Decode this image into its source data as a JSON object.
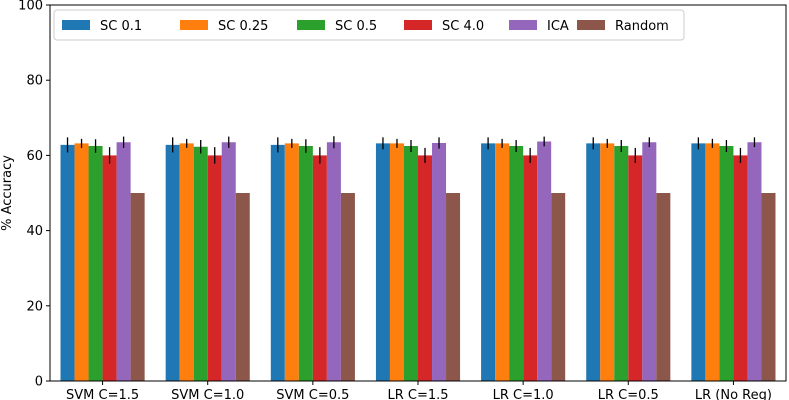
{
  "chart_data": {
    "type": "bar",
    "title": "",
    "xlabel": "",
    "ylabel": "% Accuracy",
    "ylim": [
      0,
      100
    ],
    "yticks": [
      0,
      20,
      40,
      60,
      80,
      100
    ],
    "grid": false,
    "legend_position": "top",
    "categories": [
      "SVM C=1.5",
      "SVM C=1.0",
      "SVM C=0.5",
      "LR C=1.5",
      "LR C=1.0",
      "LR C=0.5",
      "LR (No Reg)"
    ],
    "series": [
      {
        "name": "SC 0.1",
        "color": "#1f77b4",
        "values": [
          62.8,
          62.8,
          62.8,
          63.2,
          63.2,
          63.2,
          63.2
        ],
        "errors": [
          2.0,
          2.0,
          2.0,
          1.6,
          1.6,
          1.6,
          1.6
        ]
      },
      {
        "name": "SC 0.25",
        "color": "#ff7f0e",
        "values": [
          63.2,
          63.2,
          63.2,
          63.2,
          63.2,
          63.2,
          63.2
        ],
        "errors": [
          1.2,
          1.2,
          1.2,
          1.2,
          1.2,
          1.2,
          1.2
        ]
      },
      {
        "name": "SC 0.5",
        "color": "#2ca02c",
        "values": [
          62.5,
          62.3,
          62.5,
          62.5,
          62.5,
          62.5,
          62.5
        ],
        "errors": [
          1.8,
          1.8,
          1.8,
          1.6,
          1.6,
          1.6,
          1.6
        ]
      },
      {
        "name": "SC 4.0",
        "color": "#d62728",
        "values": [
          60.0,
          60.0,
          60.0,
          60.0,
          60.0,
          60.0,
          60.0
        ],
        "errors": [
          2.2,
          2.2,
          2.2,
          2.0,
          2.0,
          2.0,
          2.0
        ]
      },
      {
        "name": "ICA",
        "color": "#9467bd",
        "values": [
          63.5,
          63.5,
          63.5,
          63.3,
          63.7,
          63.5,
          63.5
        ],
        "errors": [
          1.5,
          1.5,
          1.6,
          1.5,
          1.3,
          1.3,
          1.3
        ]
      },
      {
        "name": "Random",
        "color": "#8c564b",
        "values": [
          50,
          50,
          50,
          50,
          50,
          50,
          50
        ],
        "errors": [
          0,
          0,
          0,
          0,
          0,
          0,
          0
        ]
      }
    ]
  }
}
